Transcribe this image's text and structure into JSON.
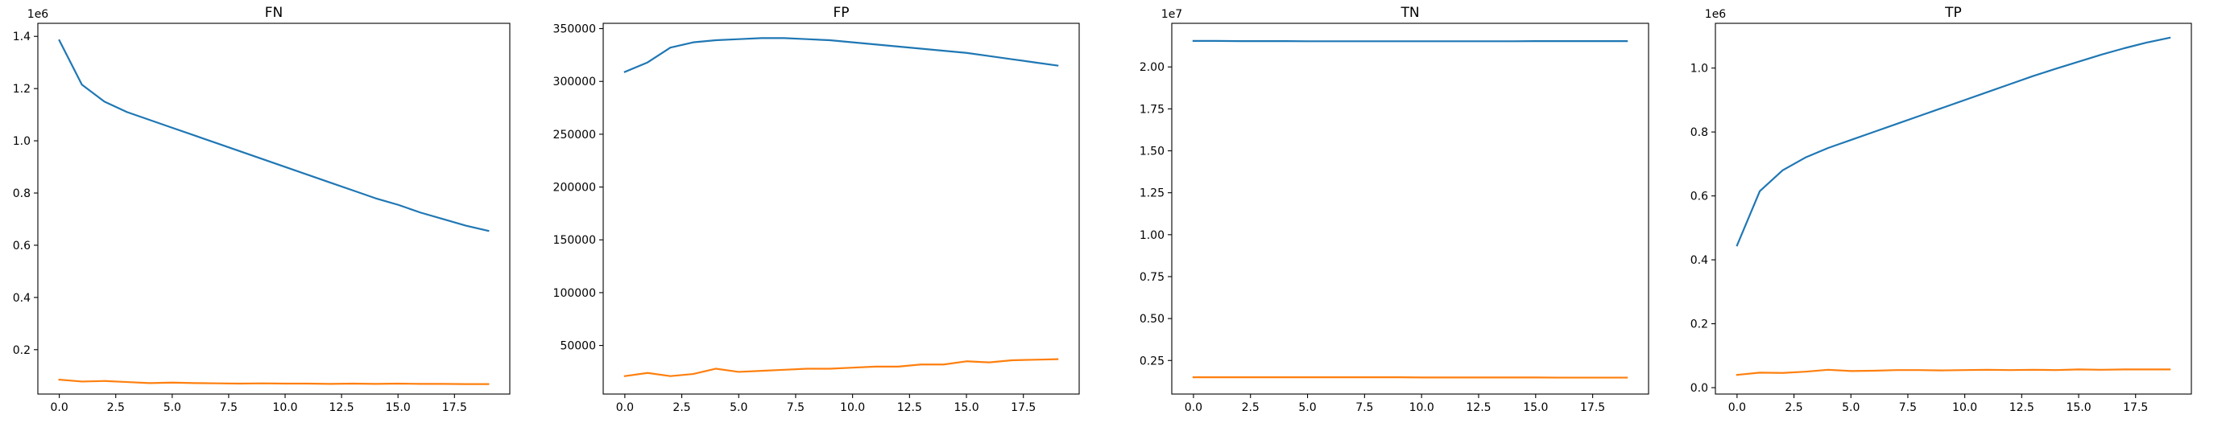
{
  "figure": {
    "background": "#ffffff"
  },
  "chart_data": [
    {
      "type": "line",
      "title": "FN",
      "xlabel": "",
      "ylabel": "",
      "offset_label": "1e6",
      "xlim": [
        -0.95,
        19.95
      ],
      "ylim": [
        0.03,
        1.45
      ],
      "xticks": [
        0.0,
        2.5,
        5.0,
        7.5,
        10.0,
        12.5,
        15.0,
        17.5
      ],
      "xtick_labels": [
        "0.0",
        "2.5",
        "5.0",
        "7.5",
        "10.0",
        "12.5",
        "15.0",
        "17.5"
      ],
      "yticks": [
        0.2,
        0.4,
        0.6,
        0.8,
        1.0,
        1.2,
        1.4
      ],
      "ytick_labels": [
        "0.2",
        "0.4",
        "0.6",
        "0.8",
        "1.0",
        "1.2",
        "1.4"
      ],
      "x": [
        0,
        1,
        2,
        3,
        4,
        5,
        6,
        7,
        8,
        9,
        10,
        11,
        12,
        13,
        14,
        15,
        16,
        17,
        18,
        19
      ],
      "series": [
        {
          "color": "#1f77b4",
          "values": [
            1.385,
            1.215,
            1.15,
            1.11,
            1.08,
            1.05,
            1.02,
            0.99,
            0.96,
            0.93,
            0.9,
            0.87,
            0.84,
            0.81,
            0.78,
            0.755,
            0.725,
            0.7,
            0.675,
            0.655
          ]
        },
        {
          "color": "#ff7f0e",
          "values": [
            0.085,
            0.078,
            0.08,
            0.076,
            0.072,
            0.074,
            0.072,
            0.071,
            0.07,
            0.071,
            0.07,
            0.07,
            0.069,
            0.07,
            0.069,
            0.07,
            0.069,
            0.069,
            0.068,
            0.068
          ]
        }
      ]
    },
    {
      "type": "line",
      "title": "FP",
      "xlabel": "",
      "ylabel": "",
      "offset_label": "",
      "xlim": [
        -0.95,
        19.95
      ],
      "ylim": [
        4000,
        355000
      ],
      "xticks": [
        0.0,
        2.5,
        5.0,
        7.5,
        10.0,
        12.5,
        15.0,
        17.5
      ],
      "xtick_labels": [
        "0.0",
        "2.5",
        "5.0",
        "7.5",
        "10.0",
        "12.5",
        "15.0",
        "17.5"
      ],
      "yticks": [
        50000,
        100000,
        150000,
        200000,
        250000,
        300000,
        350000
      ],
      "ytick_labels": [
        "50000",
        "100000",
        "150000",
        "200000",
        "250000",
        "300000",
        "350000"
      ],
      "x": [
        0,
        1,
        2,
        3,
        4,
        5,
        6,
        7,
        8,
        9,
        10,
        11,
        12,
        13,
        14,
        15,
        16,
        17,
        18,
        19
      ],
      "series": [
        {
          "color": "#1f77b4",
          "values": [
            309000,
            318000,
            332000,
            337000,
            339000,
            340000,
            341000,
            341000,
            340000,
            339000,
            337000,
            335000,
            333000,
            331000,
            329000,
            327000,
            324000,
            321000,
            318000,
            315000
          ]
        },
        {
          "color": "#ff7f0e",
          "values": [
            21000,
            24000,
            21000,
            23000,
            28000,
            25000,
            26000,
            27000,
            28000,
            28000,
            29000,
            30000,
            30000,
            32000,
            32000,
            35000,
            34000,
            36000,
            36500,
            37000
          ]
        }
      ]
    },
    {
      "type": "line",
      "title": "TN",
      "xlabel": "",
      "ylabel": "",
      "offset_label": "1e7",
      "xlim": [
        -0.95,
        19.95
      ],
      "ylim": [
        0.05,
        2.26
      ],
      "xticks": [
        0.0,
        2.5,
        5.0,
        7.5,
        10.0,
        12.5,
        15.0,
        17.5
      ],
      "xtick_labels": [
        "0.0",
        "2.5",
        "5.0",
        "7.5",
        "10.0",
        "12.5",
        "15.0",
        "17.5"
      ],
      "yticks": [
        0.25,
        0.5,
        0.75,
        1.0,
        1.25,
        1.5,
        1.75,
        2.0
      ],
      "ytick_labels": [
        "0.25",
        "0.50",
        "0.75",
        "1.00",
        "1.25",
        "1.50",
        "1.75",
        "2.00"
      ],
      "x": [
        0,
        1,
        2,
        3,
        4,
        5,
        6,
        7,
        8,
        9,
        10,
        11,
        12,
        13,
        14,
        15,
        16,
        17,
        18,
        19
      ],
      "series": [
        {
          "color": "#1f77b4",
          "values": [
            2.155,
            2.155,
            2.154,
            2.154,
            2.154,
            2.153,
            2.153,
            2.153,
            2.153,
            2.153,
            2.153,
            2.153,
            2.153,
            2.153,
            2.153,
            2.154,
            2.154,
            2.154,
            2.154,
            2.154
          ]
        },
        {
          "color": "#ff7f0e",
          "values": [
            0.15,
            0.15,
            0.15,
            0.15,
            0.15,
            0.15,
            0.15,
            0.15,
            0.15,
            0.15,
            0.149,
            0.149,
            0.149,
            0.149,
            0.149,
            0.149,
            0.148,
            0.148,
            0.148,
            0.148
          ]
        }
      ]
    },
    {
      "type": "line",
      "title": "TP",
      "xlabel": "",
      "ylabel": "",
      "offset_label": "1e6",
      "xlim": [
        -0.95,
        19.95
      ],
      "ylim": [
        -0.02,
        1.14
      ],
      "xticks": [
        0.0,
        2.5,
        5.0,
        7.5,
        10.0,
        12.5,
        15.0,
        17.5
      ],
      "xtick_labels": [
        "0.0",
        "2.5",
        "5.0",
        "7.5",
        "10.0",
        "12.5",
        "15.0",
        "17.5"
      ],
      "yticks": [
        0.0,
        0.2,
        0.4,
        0.6,
        0.8,
        1.0
      ],
      "ytick_labels": [
        "0.0",
        "0.2",
        "0.4",
        "0.6",
        "0.8",
        "1.0"
      ],
      "x": [
        0,
        1,
        2,
        3,
        4,
        5,
        6,
        7,
        8,
        9,
        10,
        11,
        12,
        13,
        14,
        15,
        16,
        17,
        18,
        19
      ],
      "series": [
        {
          "color": "#1f77b4",
          "values": [
            0.445,
            0.615,
            0.68,
            0.72,
            0.75,
            0.775,
            0.8,
            0.825,
            0.85,
            0.875,
            0.9,
            0.925,
            0.95,
            0.975,
            0.998,
            1.02,
            1.042,
            1.062,
            1.08,
            1.095
          ]
        },
        {
          "color": "#ff7f0e",
          "values": [
            0.04,
            0.047,
            0.046,
            0.05,
            0.056,
            0.052,
            0.053,
            0.055,
            0.055,
            0.054,
            0.055,
            0.056,
            0.055,
            0.056,
            0.055,
            0.057,
            0.056,
            0.057,
            0.057,
            0.057
          ]
        }
      ]
    }
  ]
}
